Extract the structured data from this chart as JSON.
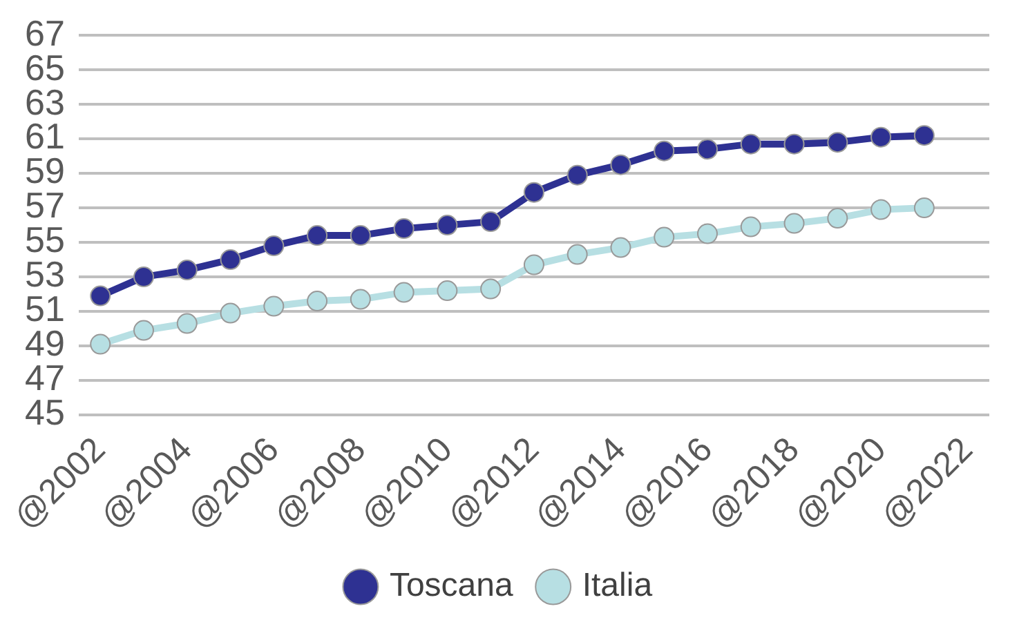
{
  "chart_data": {
    "type": "line",
    "categories": [
      "@2002",
      null,
      "@2004",
      null,
      "@2006",
      null,
      "@2008",
      null,
      "@2010",
      null,
      "@2012",
      null,
      "@2014",
      null,
      "@2016",
      null,
      "@2018",
      null,
      "@2020",
      null,
      "@2022"
    ],
    "series": [
      {
        "name": "Toscana",
        "color": "#2e3192",
        "values": [
          51.9,
          53.0,
          53.4,
          54.0,
          54.8,
          55.4,
          55.4,
          55.8,
          56.0,
          56.2,
          57.9,
          58.9,
          59.5,
          60.3,
          60.4,
          60.7,
          60.7,
          60.8,
          61.1,
          61.2,
          null
        ]
      },
      {
        "name": "Italia",
        "color": "#b7dfe3",
        "values": [
          49.1,
          49.9,
          50.3,
          50.9,
          51.3,
          51.6,
          51.7,
          52.1,
          52.2,
          52.3,
          53.7,
          54.3,
          54.7,
          55.3,
          55.5,
          55.9,
          56.1,
          56.4,
          56.9,
          57.0,
          null
        ]
      }
    ],
    "ylim": [
      45,
      67
    ],
    "yticks": [
      45,
      47,
      49,
      51,
      53,
      55,
      57,
      59,
      61,
      63,
      65,
      67
    ],
    "grid": "y",
    "legend": "bottom",
    "marker": "circle",
    "line_style": "solid"
  }
}
